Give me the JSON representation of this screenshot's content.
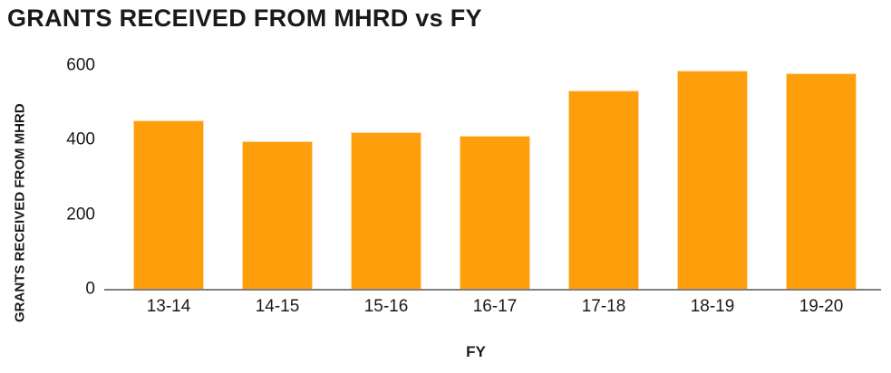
{
  "chart_data": {
    "type": "bar",
    "title": "GRANTS RECEIVED FROM MHRD vs FY",
    "xlabel": "FY",
    "ylabel": "GRANTS RECEIVED FROM MHRD",
    "categories": [
      "13-14",
      "14-15",
      "15-16",
      "16-17",
      "17-18",
      "18-19",
      "19-20"
    ],
    "values": [
      450,
      395,
      420,
      410,
      530,
      585,
      578
    ],
    "yticks": [
      0,
      200,
      400,
      600
    ],
    "ylim": [
      0,
      628
    ],
    "grid": false,
    "legend": false,
    "bar_color": "#ff9e0b",
    "bar_border_color": "#ffd9a0",
    "axis_line_color": "#7f7f7f",
    "text_color": "#1a1a1a",
    "background_color": "#ffffff"
  }
}
